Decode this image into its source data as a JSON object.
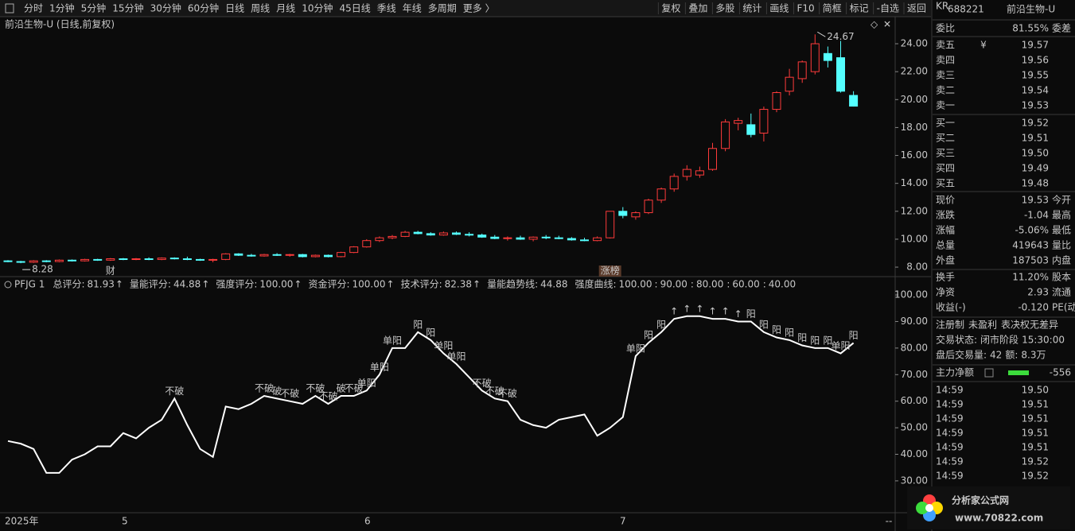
{
  "toolbar": {
    "periods": [
      "分时",
      "1分钟",
      "5分钟",
      "15分钟",
      "30分钟",
      "60分钟",
      "日线",
      "周线",
      "月线",
      "10分钟",
      "45日线",
      "季线",
      "年线",
      "多周期",
      "更多 〉"
    ],
    "active_color": "#4aa8ff",
    "actions": [
      "复权",
      "叠加",
      "多股",
      "统计",
      "画线",
      "F10",
      "简框",
      "标记",
      "-自选",
      "返回"
    ]
  },
  "main_chart": {
    "title": "前沿生物-U (日线,前复权)",
    "up_color": "#ff3b3b",
    "down_color": "#54ffff",
    "ylim": [
      7.32,
      25.88
    ],
    "yticks": [
      {
        "value": 8,
        "label": "8.00"
      },
      {
        "value": 10,
        "label": "10.00"
      },
      {
        "value": 12,
        "label": "12.00"
      },
      {
        "value": 14,
        "label": "14.00"
      },
      {
        "value": 16,
        "label": "16.00"
      },
      {
        "value": 18,
        "label": "18.00"
      },
      {
        "value": 20,
        "label": "20.00"
      },
      {
        "value": 22,
        "label": "22.00"
      },
      {
        "value": 24,
        "label": "24.00"
      }
    ],
    "candles": [
      [
        8.45,
        8.5,
        8.35,
        8.4
      ],
      [
        8.4,
        8.45,
        8.28,
        8.35
      ],
      [
        8.35,
        8.5,
        8.3,
        8.45
      ],
      [
        8.45,
        8.5,
        8.35,
        8.4
      ],
      [
        8.4,
        8.55,
        8.35,
        8.5
      ],
      [
        8.5,
        8.55,
        8.4,
        8.45
      ],
      [
        8.45,
        8.6,
        8.4,
        8.55
      ],
      [
        8.55,
        8.6,
        8.45,
        8.5
      ],
      [
        8.5,
        8.65,
        8.45,
        8.6
      ],
      [
        8.6,
        8.65,
        8.5,
        8.55
      ],
      [
        8.55,
        8.65,
        8.5,
        8.6
      ],
      [
        8.6,
        8.7,
        8.5,
        8.55
      ],
      [
        8.55,
        8.7,
        8.5,
        8.65
      ],
      [
        8.65,
        8.7,
        8.55,
        8.6
      ],
      [
        8.6,
        8.75,
        8.5,
        8.55
      ],
      [
        8.55,
        8.6,
        8.45,
        8.5
      ],
      [
        8.5,
        8.6,
        8.35,
        8.55
      ],
      [
        8.55,
        9.0,
        8.5,
        8.95
      ],
      [
        8.95,
        9.0,
        8.8,
        8.85
      ],
      [
        8.85,
        8.95,
        8.75,
        8.8
      ],
      [
        8.8,
        8.95,
        8.75,
        8.9
      ],
      [
        8.9,
        9.0,
        8.8,
        8.85
      ],
      [
        8.85,
        8.95,
        8.75,
        8.9
      ],
      [
        8.9,
        8.95,
        8.7,
        8.75
      ],
      [
        8.75,
        8.9,
        8.7,
        8.85
      ],
      [
        8.85,
        8.9,
        8.7,
        8.75
      ],
      [
        8.75,
        9.1,
        8.7,
        9.05
      ],
      [
        9.05,
        9.5,
        9.0,
        9.45
      ],
      [
        9.45,
        10.0,
        9.4,
        9.9
      ],
      [
        9.9,
        10.2,
        9.8,
        10.1
      ],
      [
        10.1,
        10.3,
        10.0,
        10.2
      ],
      [
        10.2,
        10.6,
        10.15,
        10.5
      ],
      [
        10.5,
        10.6,
        10.35,
        10.4
      ],
      [
        10.4,
        10.5,
        10.25,
        10.3
      ],
      [
        10.3,
        10.55,
        10.25,
        10.45
      ],
      [
        10.45,
        10.55,
        10.3,
        10.35
      ],
      [
        10.35,
        10.5,
        10.2,
        10.3
      ],
      [
        10.3,
        10.4,
        10.1,
        10.15
      ],
      [
        10.15,
        10.3,
        10.0,
        10.05
      ],
      [
        10.05,
        10.2,
        9.9,
        10.1
      ],
      [
        10.1,
        10.25,
        9.95,
        10.0
      ],
      [
        10.0,
        10.2,
        9.85,
        10.15
      ],
      [
        10.15,
        10.3,
        10.0,
        10.1
      ],
      [
        10.1,
        10.25,
        10.0,
        10.05
      ],
      [
        10.05,
        10.15,
        9.9,
        9.95
      ],
      [
        9.95,
        10.1,
        9.85,
        9.9
      ],
      [
        9.9,
        10.2,
        9.85,
        10.1
      ],
      [
        10.1,
        12.0,
        10.05,
        12.0
      ],
      [
        12.0,
        12.3,
        11.5,
        11.7
      ],
      [
        11.6,
        12.0,
        11.4,
        11.9
      ],
      [
        11.9,
        12.9,
        11.8,
        12.8
      ],
      [
        12.8,
        13.7,
        12.6,
        13.6
      ],
      [
        13.6,
        14.7,
        13.4,
        14.5
      ],
      [
        14.5,
        15.3,
        14.2,
        15.0
      ],
      [
        14.6,
        15.2,
        14.4,
        14.9
      ],
      [
        15.0,
        16.9,
        14.9,
        16.5
      ],
      [
        16.5,
        18.6,
        16.3,
        18.4
      ],
      [
        18.3,
        18.7,
        17.8,
        18.5
      ],
      [
        18.2,
        19.0,
        17.3,
        17.5
      ],
      [
        17.6,
        19.5,
        17.0,
        19.3
      ],
      [
        19.3,
        20.6,
        19.1,
        20.5
      ],
      [
        20.6,
        22.2,
        20.3,
        21.6
      ],
      [
        21.5,
        22.8,
        21.2,
        22.7
      ],
      [
        22.0,
        24.67,
        21.8,
        24.0
      ],
      [
        23.3,
        23.8,
        22.3,
        22.8
      ],
      [
        23.0,
        24.2,
        20.5,
        20.6
      ],
      [
        20.3,
        20.6,
        19.5,
        19.53
      ]
    ],
    "events": [
      {
        "candle": 8,
        "text": "财"
      },
      {
        "candle": 47,
        "text": "涨榜"
      }
    ]
  },
  "indicator": {
    "name": "PFJG 1",
    "sep": ":",
    "metrics": [
      {
        "label": "总评分:",
        "value": "81.93",
        "arrow": "↑",
        "color": "#e0e0e0"
      },
      {
        "label": "量能评分:",
        "value": "44.88",
        "arrow": "↑",
        "color": "#ffd800"
      },
      {
        "label": "强度评分:",
        "value": "100.00",
        "arrow": "↑",
        "color": "#ff40ff"
      },
      {
        "label": "资金评分:",
        "value": "100.00",
        "arrow": "↑",
        "color": "#3cdc3c"
      },
      {
        "label": "技术评分:",
        "value": "82.38",
        "arrow": "↑",
        "color": "#e0e0e0"
      },
      {
        "label": "量能趋势线:",
        "value": "44.88",
        "color": "#40e0e0"
      },
      {
        "label": "强度曲线:",
        "value": "100.00",
        "color": "#ff40ff"
      }
    ],
    "levels": [
      {
        "value": "90.00",
        "color": "#ffd800"
      },
      {
        "value": "80.00",
        "color": "#ff3b3b"
      },
      {
        "value": "60.00",
        "color": "#40e0e0"
      },
      {
        "value": "40.00",
        "color": "#3cdc3c"
      }
    ],
    "arrow_color": "#ff3b3b",
    "line_color": "#ffffff",
    "ylim": [
      19.5,
      105.7
    ],
    "yticks": [
      {
        "value": 30,
        "label": "30.00"
      },
      {
        "value": 40,
        "label": "40.00"
      },
      {
        "value": 50,
        "label": "50.00"
      },
      {
        "value": 60,
        "label": "60.00"
      },
      {
        "value": 70,
        "label": "70.00"
      },
      {
        "value": 80,
        "label": "80.00"
      },
      {
        "value": 90,
        "label": "90.00"
      },
      {
        "value": 100,
        "label": "100.00"
      }
    ],
    "values": [
      45,
      44,
      42,
      33,
      33,
      38,
      40,
      43,
      43,
      48,
      46,
      50,
      53,
      61,
      51,
      42,
      39,
      58,
      57,
      59,
      62,
      61,
      60,
      59,
      62,
      59,
      62,
      62,
      64,
      70,
      80,
      80,
      86,
      83,
      78,
      74,
      69,
      64,
      61,
      60,
      53,
      51,
      50,
      53,
      54,
      55,
      47,
      50,
      54,
      77,
      82,
      86,
      91,
      92,
      92,
      91,
      91,
      90,
      90,
      86,
      84,
      83,
      81,
      80,
      80,
      78,
      81.93
    ],
    "signals": [
      null,
      null,
      null,
      null,
      null,
      null,
      null,
      null,
      null,
      null,
      null,
      null,
      null,
      {
        "text": "不破",
        "color": "#40e0e0"
      },
      null,
      null,
      null,
      null,
      null,
      null,
      {
        "text": "不破",
        "color": "#40e0e0"
      },
      {
        "text": "破",
        "color": "#40e0e0"
      },
      {
        "text": "不破",
        "color": "#40e0e0"
      },
      null,
      {
        "text": "不破",
        "color": "#40e0e0"
      },
      {
        "text": "不破",
        "color": "#40e0e0"
      },
      {
        "text": "破",
        "color": "#40e0e0"
      },
      {
        "text": "不破",
        "color": "#40e0e0"
      },
      {
        "text": "单阳",
        "color": "#ff40ff"
      },
      {
        "text": "单阳",
        "color": "#ff40ff"
      },
      {
        "text": "单阳",
        "color": "#ff40ff"
      },
      null,
      {
        "text": "阳",
        "color": "#ff3b3b"
      },
      {
        "text": "阳",
        "color": "#ff3b3b"
      },
      {
        "text": "单阳",
        "color": "#ff40ff"
      },
      {
        "text": "单阳",
        "color": "#ff40ff"
      },
      null,
      {
        "text": "不破",
        "color": "#40e0e0"
      },
      {
        "text": "不破",
        "color": "#40e0e0"
      },
      {
        "text": "不破",
        "color": "#40e0e0"
      },
      null,
      null,
      null,
      null,
      null,
      null,
      null,
      null,
      null,
      {
        "text": "单阳",
        "color": "#ff40ff"
      },
      {
        "text": "阳",
        "color": "#ff3b3b"
      },
      {
        "text": "阳",
        "color": "#ff3b3b"
      },
      {
        "text": "↑",
        "color": "#ff3b3b"
      },
      {
        "text": "↑",
        "color": "#ff3b3b"
      },
      {
        "text": "↑",
        "color": "#ff3b3b"
      },
      {
        "text": "↑",
        "color": "#ff3b3b"
      },
      {
        "text": "↑",
        "color": "#ff3b3b"
      },
      {
        "text": "↑",
        "color": "#ff3b3b"
      },
      {
        "text": "阳",
        "color": "#ff3b3b"
      },
      {
        "text": "阳",
        "color": "#ff3b3b"
      },
      {
        "text": "阳",
        "color": "#ff3b3b"
      },
      {
        "text": "阳",
        "color": "#ff3b3b"
      },
      {
        "text": "阳",
        "color": "#ff3b3b"
      },
      {
        "text": "阳",
        "color": "#ff3b3b"
      },
      {
        "text": "阳",
        "color": "#ff3b3b"
      },
      {
        "text": "单阳",
        "color": "#ff40ff"
      },
      {
        "text": "阳",
        "color": "#ff3b3b"
      }
    ]
  },
  "x_axis": [
    "2025年",
    "5",
    "6",
    "7"
  ],
  "corner": "--",
  "quote": {
    "badge": "KR",
    "code": "688221",
    "name": "前沿生物-U",
    "ratio": {
      "label": "委比",
      "value": "81.55%",
      "color": "#ff3b3b",
      "next": "委差"
    },
    "currency": "¥",
    "sell": [
      {
        "label": "卖五",
        "value": "19.57"
      },
      {
        "label": "卖四",
        "value": "19.56"
      },
      {
        "label": "卖三",
        "value": "19.55"
      },
      {
        "label": "卖二",
        "value": "19.54"
      },
      {
        "label": "卖一",
        "value": "19.53"
      }
    ],
    "buy": [
      {
        "label": "买一",
        "value": "19.52"
      },
      {
        "label": "买二",
        "value": "19.51"
      },
      {
        "label": "买三",
        "value": "19.50"
      },
      {
        "label": "买四",
        "value": "19.49"
      },
      {
        "label": "买五",
        "value": "19.48"
      }
    ],
    "book_color": "#3cdc3c",
    "stats": [
      {
        "label": "现价",
        "value": "19.53",
        "color": "#3cdc3c",
        "next": "今开"
      },
      {
        "label": "涨跌",
        "value": "-1.04",
        "color": "#3cdc3c",
        "next": "最高"
      },
      {
        "label": "涨幅",
        "value": "-5.06%",
        "color": "#3cdc3c",
        "next": "最低"
      },
      {
        "label": "总量",
        "value": "419643",
        "color": "#ffd800",
        "next": "量比"
      },
      {
        "label": "外盘",
        "value": "187503",
        "color": "#ff3b3b",
        "next": "内盘"
      }
    ],
    "stats2": [
      {
        "label": "换手",
        "value": "11.20%",
        "color": "#e0e0e0",
        "next": "股本"
      },
      {
        "label": "净资",
        "value": "2.93",
        "color": "#e0e0e0",
        "next": "流通"
      },
      {
        "label": "收益(-)",
        "value": "-0.120",
        "color": "#e0e0e0",
        "next": "PE(动)"
      }
    ],
    "tags": [
      "注册制",
      "未盈利",
      "表决权无差异"
    ],
    "status": {
      "label": "交易状态:",
      "value": "闭市阶段",
      "time": "15:30:00"
    },
    "after": {
      "label": "盘后交易量:",
      "volume": "42",
      "amount_label": "额:",
      "amount": "8.3万"
    },
    "flow": {
      "label": "主力净额",
      "value": "-556",
      "color": "#3cdc3c"
    },
    "trades": [
      {
        "time": "14:59",
        "price": "19.50"
      },
      {
        "time": "14:59",
        "price": "19.51"
      },
      {
        "time": "14:59",
        "price": "19.51"
      },
      {
        "time": "14:59",
        "price": "19.51"
      },
      {
        "time": "14:59",
        "price": "19.51"
      },
      {
        "time": "14:59",
        "price": "19.52"
      },
      {
        "time": "14:59",
        "price": "19.52"
      }
    ]
  },
  "logo": {
    "name": "分析家公式网",
    "url": "www.70822.com"
  }
}
